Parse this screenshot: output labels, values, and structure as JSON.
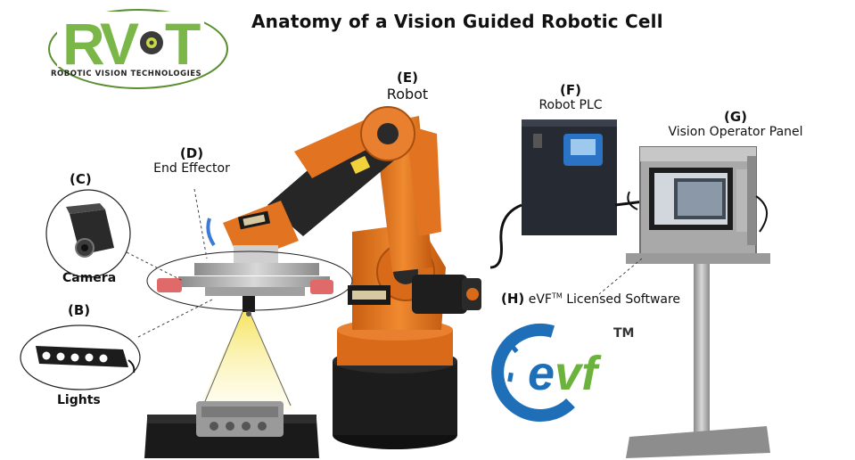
{
  "title": "Anatomy of a Vision Guided Robotic Cell",
  "logo": {
    "mark": "RVT",
    "subtitle": "ROBOTIC VISION TECHNOLOGIES",
    "color": "#7ab648"
  },
  "components": {
    "robot": {
      "letter": "(E)",
      "name": "Robot"
    },
    "plc": {
      "letter": "(F)",
      "name": "Robot PLC"
    },
    "panel": {
      "letter": "(G)",
      "name": "Vision Operator Panel"
    },
    "effector": {
      "letter": "(D)",
      "name": "End Effector"
    },
    "camera": {
      "letter": "(C)",
      "name": "Camera"
    },
    "lights": {
      "letter": "(B)",
      "name": "Lights"
    },
    "software": {
      "letter": "(H)",
      "name_prefix": "eVF",
      "name_tm": "TM",
      "name_suffix": " Licensed Software"
    }
  },
  "evf_logo": {
    "text_e": "e",
    "text_vf": "vf",
    "tm": "TM",
    "blue": "#1e6fb8",
    "green": "#6bb33c"
  },
  "colors": {
    "robot_orange": "#e27320",
    "robot_dark": "#2a2a2a",
    "steel": "#b8b8b8"
  }
}
